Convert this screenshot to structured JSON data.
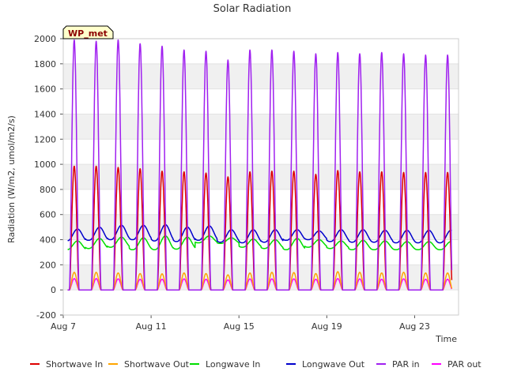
{
  "chart_data": {
    "type": "line",
    "title": "Solar Radiation",
    "xlabel": "Time",
    "ylabel": "Radiation (W/m2, umol/m2/s)",
    "site_label": "WP_met",
    "x_unit": "day of August",
    "xlim": [
      7,
      25
    ],
    "ylim": [
      -200,
      2000
    ],
    "yticks": [
      -200,
      0,
      200,
      400,
      600,
      800,
      1000,
      1200,
      1400,
      1600,
      1800,
      2000
    ],
    "xticks": [
      {
        "day": 7,
        "label": "Aug 7"
      },
      {
        "day": 11,
        "label": "Aug 11"
      },
      {
        "day": 15,
        "label": "Aug 15"
      },
      {
        "day": 19,
        "label": "Aug 19"
      },
      {
        "day": 23,
        "label": "Aug 23"
      }
    ],
    "grid": "horizontal bands",
    "legend_position": "bottom",
    "days": [
      7,
      8,
      9,
      10,
      11,
      12,
      13,
      14,
      15,
      16,
      17,
      18,
      19,
      20,
      21,
      22,
      23,
      24
    ],
    "series": [
      {
        "name": "Shortwave In",
        "color": "#dd0000",
        "kind": "diurnal",
        "daily_peak": [
          985,
          985,
          975,
          965,
          945,
          940,
          930,
          900,
          940,
          945,
          945,
          920,
          950,
          940,
          940,
          935,
          935,
          0
        ],
        "night": 0
      },
      {
        "name": "Shortwave Out",
        "color": "#ffa500",
        "kind": "diurnal",
        "daily_peak": [
          140,
          140,
          135,
          130,
          128,
          135,
          130,
          120,
          135,
          140,
          138,
          130,
          145,
          140,
          135,
          140,
          135,
          0
        ],
        "night": 0
      },
      {
        "name": "Longwave In",
        "color": "#00dd00",
        "kind": "cycle",
        "daily_max": [
          390,
          410,
          420,
          415,
          430,
          420,
          430,
          415,
          405,
          400,
          410,
          400,
          390,
          395,
          390,
          385,
          385,
          0
        ],
        "daily_min": [
          320,
          330,
          340,
          320,
          320,
          325,
          375,
          370,
          340,
          330,
          320,
          340,
          330,
          320,
          320,
          320,
          320,
          0
        ]
      },
      {
        "name": "Longwave Out",
        "color": "#0000cc",
        "kind": "cycle",
        "daily_max": [
          485,
          500,
          515,
          515,
          520,
          500,
          510,
          480,
          480,
          480,
          480,
          470,
          480,
          480,
          475,
          475,
          475,
          0
        ],
        "daily_min": [
          390,
          395,
          400,
          400,
          390,
          385,
          395,
          380,
          375,
          380,
          395,
          400,
          385,
          380,
          380,
          375,
          375,
          0
        ]
      },
      {
        "name": "PAR in",
        "color": "#a020f0",
        "kind": "diurnal",
        "daily_peak": [
          1990,
          1980,
          1990,
          1960,
          1940,
          1910,
          1900,
          1830,
          1910,
          1910,
          1900,
          1880,
          1890,
          1880,
          1890,
          1880,
          1870,
          0
        ],
        "night": 0
      },
      {
        "name": "PAR out",
        "color": "#ff00ff",
        "kind": "diurnal",
        "daily_peak": [
          90,
          90,
          88,
          85,
          85,
          88,
          85,
          80,
          88,
          88,
          88,
          85,
          90,
          88,
          85,
          88,
          85,
          0
        ],
        "night": 0
      }
    ]
  }
}
